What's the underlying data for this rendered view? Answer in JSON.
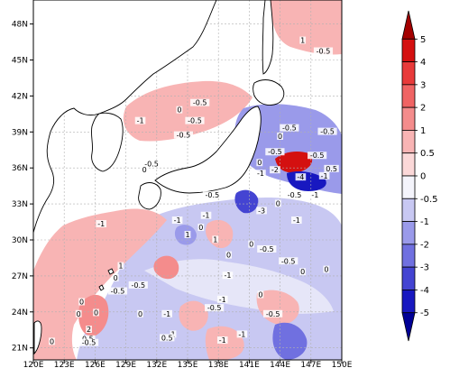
{
  "map": {
    "lat_ticks": [
      "48N",
      "45N",
      "42N",
      "39N",
      "36N",
      "33N",
      "30N",
      "27N",
      "24N",
      "21N"
    ],
    "lon_ticks": [
      "120E",
      "123E",
      "126E",
      "129E",
      "132E",
      "135E",
      "138E",
      "141E",
      "144E",
      "147E",
      "150E"
    ],
    "lon_range": [
      120,
      150
    ],
    "lat_range": [
      20,
      50
    ]
  },
  "colorbar": {
    "labels": [
      "5",
      "4",
      "3",
      "2",
      "1",
      "0.5",
      "0",
      "-0.5",
      "-1",
      "-2",
      "-3",
      "-4",
      "-5"
    ],
    "colors": [
      "#a40000",
      "#d41010",
      "#e83a3a",
      "#f06464",
      "#f48c8c",
      "#f8b4b4",
      "#fbd8d8",
      "#f4f4fb",
      "#c8c8f2",
      "#9a9aea",
      "#7070e0",
      "#4444d2",
      "#1818c0",
      "#000096"
    ]
  },
  "contour_labels": [
    {
      "text": "1",
      "lon": 146.2,
      "lat": 46.5
    },
    {
      "text": "-0.5",
      "lon": 148.2,
      "lat": 45.6
    },
    {
      "text": "-0.5",
      "lon": 136.2,
      "lat": 41.3
    },
    {
      "text": "0",
      "lon": 134.2,
      "lat": 40.7
    },
    {
      "text": "-0.5",
      "lon": 135.7,
      "lat": 39.8
    },
    {
      "text": "-1",
      "lon": 130.4,
      "lat": 39.8
    },
    {
      "text": "-0.5",
      "lon": 134.6,
      "lat": 38.6
    },
    {
      "text": "-0.5",
      "lon": 131.5,
      "lat": 36.2
    },
    {
      "text": "0",
      "lon": 130.8,
      "lat": 35.7
    },
    {
      "text": "-0.5",
      "lon": 144.9,
      "lat": 39.2
    },
    {
      "text": "-0.5",
      "lon": 148.6,
      "lat": 38.9
    },
    {
      "text": "0",
      "lon": 144.0,
      "lat": 38.5
    },
    {
      "text": "-0.5",
      "lon": 143.5,
      "lat": 37.2
    },
    {
      "text": "-0.5",
      "lon": 147.6,
      "lat": 36.9
    },
    {
      "text": "0",
      "lon": 142.0,
      "lat": 36.3
    },
    {
      "text": "-2",
      "lon": 143.5,
      "lat": 35.7
    },
    {
      "text": "-1",
      "lon": 142.1,
      "lat": 35.4
    },
    {
      "text": "-1",
      "lon": 148.3,
      "lat": 35.2
    },
    {
      "text": "0.5",
      "lon": 149.0,
      "lat": 35.8
    },
    {
      "text": "-4",
      "lon": 146.0,
      "lat": 35.1
    },
    {
      "text": "-0.5",
      "lon": 137.4,
      "lat": 33.6
    },
    {
      "text": "-0.5",
      "lon": 145.4,
      "lat": 33.6
    },
    {
      "text": "-1",
      "lon": 147.4,
      "lat": 33.6
    },
    {
      "text": "-3",
      "lon": 142.2,
      "lat": 32.3
    },
    {
      "text": "0",
      "lon": 143.8,
      "lat": 32.9
    },
    {
      "text": "-1",
      "lon": 126.6,
      "lat": 31.2
    },
    {
      "text": "-1",
      "lon": 134.0,
      "lat": 31.5
    },
    {
      "text": "-1",
      "lon": 136.8,
      "lat": 31.9
    },
    {
      "text": "-1",
      "lon": 145.6,
      "lat": 31.5
    },
    {
      "text": "0",
      "lon": 136.3,
      "lat": 30.9
    },
    {
      "text": "1",
      "lon": 135.0,
      "lat": 30.3
    },
    {
      "text": "1",
      "lon": 137.7,
      "lat": 29.9
    },
    {
      "text": "0",
      "lon": 141.2,
      "lat": 29.5
    },
    {
      "text": "-0.5",
      "lon": 142.7,
      "lat": 29.1
    },
    {
      "text": "-0.5",
      "lon": 144.8,
      "lat": 28.1
    },
    {
      "text": "0",
      "lon": 139.0,
      "lat": 28.6
    },
    {
      "text": "0",
      "lon": 146.2,
      "lat": 27.2
    },
    {
      "text": "0",
      "lon": 148.5,
      "lat": 27.4
    },
    {
      "text": "-1",
      "lon": 138.9,
      "lat": 26.9
    },
    {
      "text": "1",
      "lon": 128.5,
      "lat": 27.7
    },
    {
      "text": "0",
      "lon": 128.0,
      "lat": 26.7
    },
    {
      "text": "-0.5",
      "lon": 130.2,
      "lat": 26.1
    },
    {
      "text": "-0.5",
      "lon": 128.2,
      "lat": 25.6
    },
    {
      "text": "0",
      "lon": 142.1,
      "lat": 25.3
    },
    {
      "text": "-1",
      "lon": 138.4,
      "lat": 24.9
    },
    {
      "text": "0",
      "lon": 124.7,
      "lat": 24.7
    },
    {
      "text": "0",
      "lon": 126.1,
      "lat": 23.8
    },
    {
      "text": "0",
      "lon": 130.4,
      "lat": 23.7
    },
    {
      "text": "-1",
      "lon": 133.0,
      "lat": 23.7
    },
    {
      "text": "-0.5",
      "lon": 137.6,
      "lat": 24.2
    },
    {
      "text": "-0.5",
      "lon": 143.3,
      "lat": 23.7
    },
    {
      "text": "0",
      "lon": 124.4,
      "lat": 23.7
    },
    {
      "text": "2",
      "lon": 125.4,
      "lat": 22.4
    },
    {
      "text": "0.5",
      "lon": 125.3,
      "lat": 21.6
    },
    {
      "text": "1",
      "lon": 133.6,
      "lat": 22.0
    },
    {
      "text": "0.5",
      "lon": 133.0,
      "lat": 21.7
    },
    {
      "text": "-1",
      "lon": 140.3,
      "lat": 22.0
    },
    {
      "text": "-1",
      "lon": 138.4,
      "lat": 21.5
    },
    {
      "text": "0",
      "lon": 121.8,
      "lat": 21.4
    },
    {
      "text": "-0.5",
      "lon": 125.4,
      "lat": 21.3
    }
  ]
}
